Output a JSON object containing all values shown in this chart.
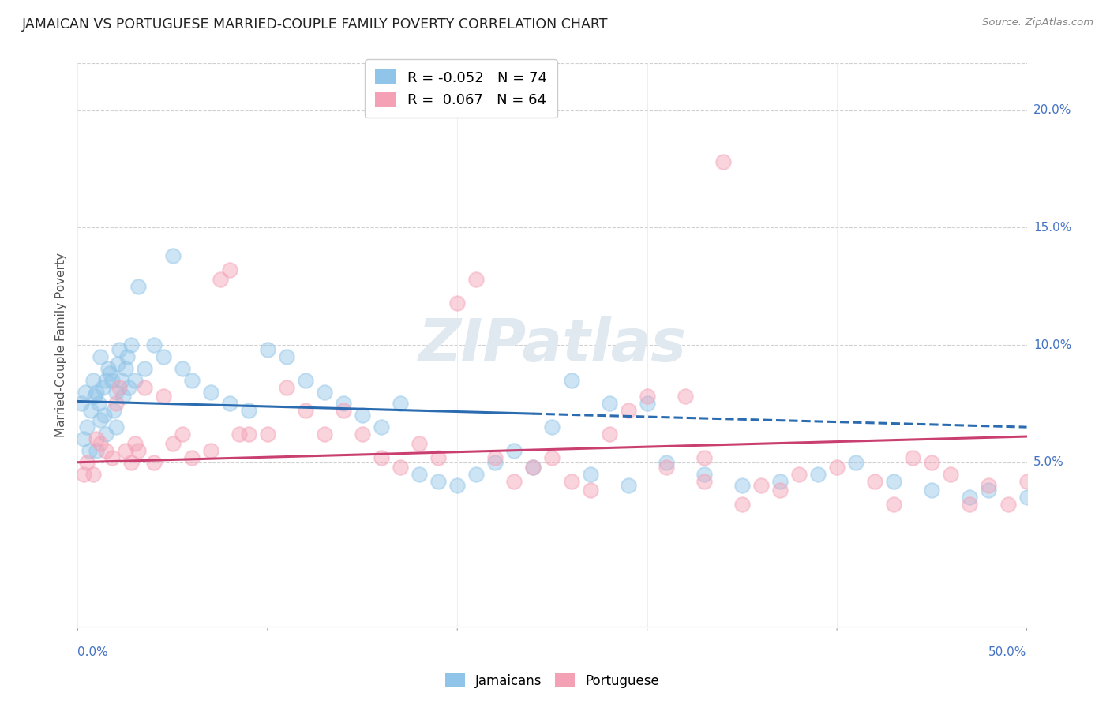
{
  "title": "JAMAICAN VS PORTUGUESE MARRIED-COUPLE FAMILY POVERTY CORRELATION CHART",
  "source": "Source: ZipAtlas.com",
  "ylabel": "Married-Couple Family Poverty",
  "watermark": "ZIPatlas",
  "legend_entries": [
    {
      "label": "Jamaicans",
      "color": "#90c4e8",
      "R": -0.052,
      "N": 74
    },
    {
      "label": "Portuguese",
      "color": "#f4a0b5",
      "R": 0.067,
      "N": 64
    }
  ],
  "jamaicans_x": [
    0.2,
    0.3,
    0.4,
    0.5,
    0.6,
    0.7,
    0.8,
    0.9,
    1.0,
    1.0,
    1.1,
    1.2,
    1.2,
    1.3,
    1.4,
    1.5,
    1.5,
    1.6,
    1.7,
    1.8,
    1.9,
    2.0,
    2.0,
    2.1,
    2.2,
    2.3,
    2.4,
    2.5,
    2.6,
    2.7,
    2.8,
    3.0,
    3.2,
    3.5,
    4.0,
    4.5,
    5.0,
    5.5,
    6.0,
    7.0,
    8.0,
    9.0,
    10.0,
    11.0,
    12.0,
    13.0,
    14.0,
    15.0,
    16.0,
    17.0,
    18.0,
    19.0,
    20.0,
    21.0,
    22.0,
    23.0,
    24.0,
    25.0,
    27.0,
    29.0,
    31.0,
    33.0,
    35.0,
    37.0,
    39.0,
    41.0,
    43.0,
    45.0,
    47.0,
    48.0,
    50.0,
    28.0,
    26.0,
    30.0
  ],
  "jamaicans_y": [
    7.5,
    6.0,
    8.0,
    6.5,
    5.5,
    7.2,
    8.5,
    7.8,
    8.0,
    5.5,
    7.5,
    6.8,
    9.5,
    8.2,
    7.0,
    8.5,
    6.2,
    9.0,
    8.8,
    8.5,
    7.2,
    8.0,
    6.5,
    9.2,
    9.8,
    8.5,
    7.8,
    9.0,
    9.5,
    8.2,
    10.0,
    8.5,
    12.5,
    9.0,
    10.0,
    9.5,
    13.8,
    9.0,
    8.5,
    8.0,
    7.5,
    7.2,
    9.8,
    9.5,
    8.5,
    8.0,
    7.5,
    7.0,
    6.5,
    7.5,
    4.5,
    4.2,
    4.0,
    4.5,
    5.0,
    5.5,
    4.8,
    6.5,
    4.5,
    4.0,
    5.0,
    4.5,
    4.0,
    4.2,
    4.5,
    5.0,
    4.2,
    3.8,
    3.5,
    3.8,
    3.5,
    7.5,
    8.5,
    7.5
  ],
  "portuguese_x": [
    0.3,
    0.5,
    0.8,
    1.0,
    1.2,
    1.5,
    1.8,
    2.0,
    2.2,
    2.5,
    2.8,
    3.0,
    3.2,
    3.5,
    4.0,
    4.5,
    5.0,
    5.5,
    6.0,
    7.0,
    7.5,
    8.0,
    8.5,
    9.0,
    10.0,
    11.0,
    12.0,
    13.0,
    14.0,
    15.0,
    16.0,
    17.0,
    18.0,
    19.0,
    20.0,
    21.0,
    22.0,
    23.0,
    24.0,
    25.0,
    26.0,
    27.0,
    28.0,
    29.0,
    30.0,
    32.0,
    33.0,
    35.0,
    36.0,
    37.0,
    38.0,
    40.0,
    42.0,
    43.0,
    44.0,
    45.0,
    46.0,
    47.0,
    48.0,
    49.0,
    50.0,
    31.0,
    33.0,
    34.0
  ],
  "portuguese_y": [
    4.5,
    5.0,
    4.5,
    6.0,
    5.8,
    5.5,
    5.2,
    7.5,
    8.2,
    5.5,
    5.0,
    5.8,
    5.5,
    8.2,
    5.0,
    7.8,
    5.8,
    6.2,
    5.2,
    5.5,
    12.8,
    13.2,
    6.2,
    6.2,
    6.2,
    8.2,
    7.2,
    6.2,
    7.2,
    6.2,
    5.2,
    4.8,
    5.8,
    5.2,
    11.8,
    12.8,
    5.2,
    4.2,
    4.8,
    5.2,
    4.2,
    3.8,
    6.2,
    7.2,
    7.8,
    7.8,
    4.2,
    3.2,
    4.0,
    3.8,
    4.5,
    4.8,
    4.2,
    3.2,
    5.2,
    5.0,
    4.5,
    3.2,
    4.0,
    3.2,
    4.2,
    4.8,
    5.2,
    17.8
  ],
  "xlim": [
    0.0,
    50.0
  ],
  "ylim": [
    -2.0,
    22.0
  ],
  "yticks": [
    5.0,
    10.0,
    15.0,
    20.0
  ],
  "ytick_labels": [
    "5.0%",
    "10.0%",
    "15.0%",
    "20.0%"
  ],
  "jam_line_x0": 0.0,
  "jam_line_y0": 7.6,
  "jam_line_x1": 50.0,
  "jam_line_y1": 6.5,
  "port_line_x0": 0.0,
  "port_line_y0": 5.0,
  "port_line_x1": 50.0,
  "port_line_y1": 6.1,
  "dash_start_x": 24.0,
  "jamaican_color": "#90c4e8",
  "portuguese_color": "#f4a0b5",
  "jamaican_line_color": "#2b6cb0",
  "portuguese_line_color": "#c94070",
  "background_color": "#ffffff",
  "grid_color": "#d0d0d0",
  "title_color": "#222222",
  "axis_label_color": "#555555",
  "tick_color": "#4472c4",
  "source_color": "#888888"
}
